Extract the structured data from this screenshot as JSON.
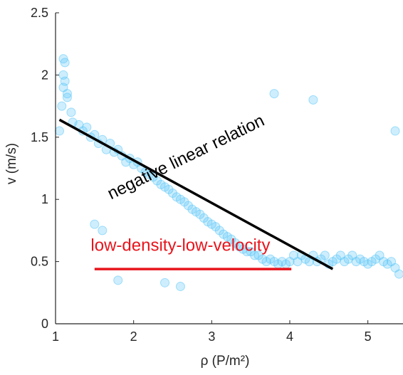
{
  "chart_data": {
    "type": "scatter",
    "xlabel": "ρ (P/m²)",
    "ylabel": "v (m/s)",
    "xlim": [
      1,
      5.45
    ],
    "ylim": [
      0,
      2.5
    ],
    "x_ticks": [
      "1",
      "2",
      "3",
      "4",
      "5"
    ],
    "y_ticks": [
      "0",
      "0.5",
      "1",
      "1.5",
      "2",
      "2.5"
    ],
    "grid": false,
    "marker_color": "#4fc3f7",
    "lines": [
      {
        "label": "negative linear relation",
        "color": "#000000",
        "x": [
          1.05,
          4.55
        ],
        "y": [
          1.64,
          0.44
        ]
      },
      {
        "label": "low-density-low-velocity",
        "color": "#e8141c",
        "x": [
          1.5,
          4.02
        ],
        "y": [
          0.44,
          0.44
        ]
      }
    ],
    "annotations": [
      {
        "text": "negative linear relation",
        "color": "#000000",
        "x": 2.7,
        "y": 1.3,
        "angle": -26
      },
      {
        "text": "low-density-low-velocity",
        "color": "#e8141c",
        "x": 2.6,
        "y": 0.585,
        "angle": 0
      }
    ],
    "series": [
      {
        "trend_line_samples": "approximate reading of the dense point cloud",
        "x": [
          1.05,
          1.08,
          1.1,
          1.12,
          1.1,
          1.15,
          1.2,
          1.22,
          1.3,
          1.35,
          1.4,
          1.45,
          1.5,
          1.55,
          1.6,
          1.65,
          1.7,
          1.75,
          1.8,
          1.85,
          1.9,
          1.95,
          2.0,
          2.05,
          2.1,
          2.15,
          2.2,
          2.25,
          2.3,
          2.35,
          2.4,
          2.45,
          2.5,
          2.55,
          2.6,
          2.65,
          2.7,
          2.75,
          2.8,
          2.85,
          2.9,
          2.95,
          3.0,
          3.05,
          3.1,
          3.15,
          3.2,
          3.25,
          3.3,
          3.35,
          3.4,
          3.45,
          3.5,
          3.55,
          3.6,
          3.65,
          3.7,
          3.75,
          3.8,
          3.85,
          3.9,
          3.95,
          4.0,
          4.05,
          4.1,
          4.15,
          4.2,
          4.25,
          4.3,
          4.35,
          4.4,
          4.45,
          4.5,
          4.55,
          4.6,
          4.65,
          4.7,
          4.75,
          4.8,
          4.85,
          4.9,
          4.95,
          5.0,
          5.05,
          5.1,
          5.15,
          5.2,
          5.25,
          5.3,
          5.35,
          5.4,
          1.1,
          1.12,
          1.15,
          1.5,
          1.6,
          1.8,
          2.4,
          2.6,
          3.8,
          4.3,
          5.35
        ],
        "y": [
          1.55,
          1.75,
          2.13,
          2.1,
          1.9,
          1.85,
          1.7,
          1.62,
          1.6,
          1.55,
          1.58,
          1.5,
          1.52,
          1.45,
          1.48,
          1.4,
          1.45,
          1.38,
          1.4,
          1.35,
          1.3,
          1.33,
          1.28,
          1.3,
          1.25,
          1.22,
          1.2,
          1.18,
          1.15,
          1.12,
          1.1,
          1.08,
          1.05,
          1.02,
          1.0,
          0.98,
          0.95,
          0.92,
          0.9,
          0.88,
          0.85,
          0.82,
          0.8,
          0.78,
          0.75,
          0.72,
          0.7,
          0.68,
          0.65,
          0.62,
          0.6,
          0.58,
          0.58,
          0.55,
          0.55,
          0.52,
          0.5,
          0.52,
          0.5,
          0.48,
          0.5,
          0.48,
          0.5,
          0.55,
          0.5,
          0.55,
          0.52,
          0.5,
          0.55,
          0.5,
          0.52,
          0.55,
          0.48,
          0.5,
          0.52,
          0.55,
          0.5,
          0.52,
          0.55,
          0.5,
          0.52,
          0.5,
          0.48,
          0.5,
          0.52,
          0.55,
          0.5,
          0.48,
          0.5,
          0.45,
          0.4,
          2.0,
          1.95,
          1.82,
          0.8,
          0.75,
          0.35,
          0.33,
          0.3,
          1.85,
          1.8,
          1.55
        ]
      }
    ]
  }
}
